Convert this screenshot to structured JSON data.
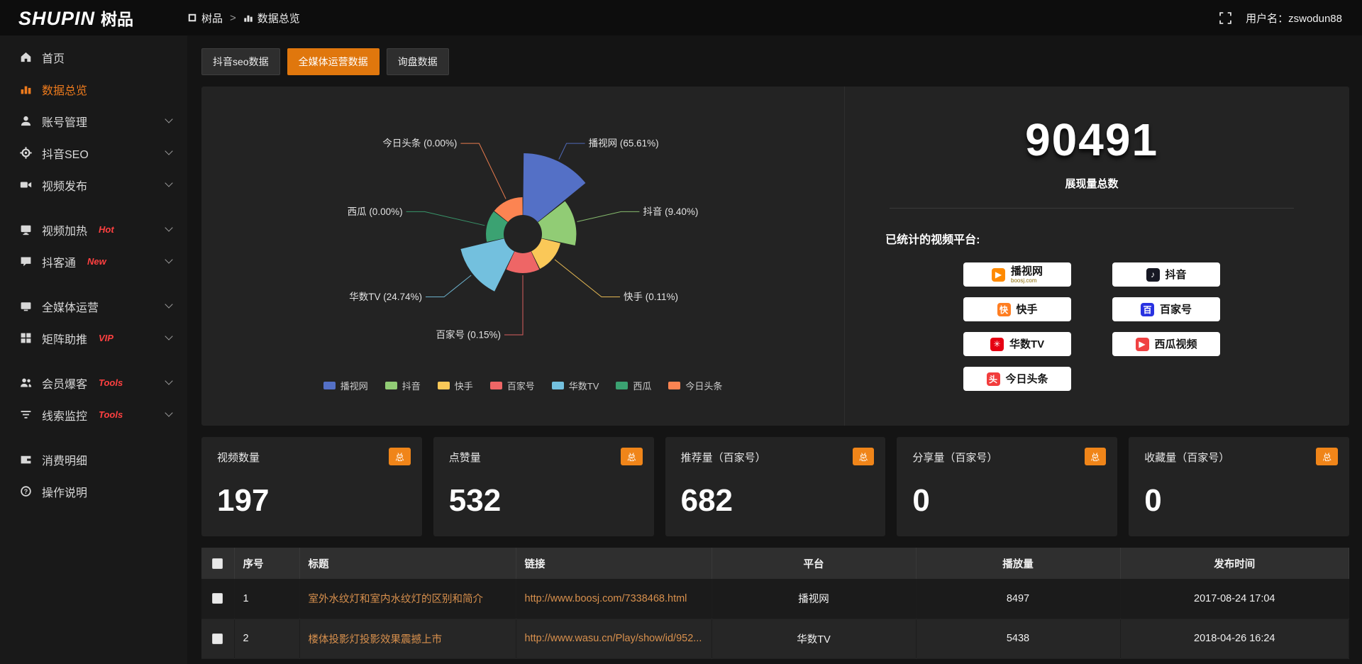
{
  "app": {
    "logo_en": "SHUPIN",
    "logo_cn": "树品",
    "breadcrumb": [
      {
        "icon": "app-cube-icon",
        "icon_key": "cube",
        "label": "树品"
      },
      {
        "icon": "data-overview-icon",
        "icon_key": "chart",
        "label": "数据总览"
      }
    ],
    "breadcrumb_sep": ">",
    "username": "用户名：zswodun88"
  },
  "sidebar": {
    "items": [
      {
        "id": "home",
        "label": "首页",
        "icon": "home-icon",
        "icon_key": "home"
      },
      {
        "id": "data-overview",
        "label": "数据总览",
        "icon": "bar-chart-icon",
        "icon_key": "chart",
        "active": true
      },
      {
        "id": "account",
        "label": "账号管理",
        "icon": "user-icon",
        "icon_key": "user",
        "expandable": true
      },
      {
        "id": "douyin-seo",
        "label": "抖音SEO",
        "icon": "gear-icon",
        "icon_key": "gear",
        "expandable": true
      },
      {
        "id": "video-publish",
        "label": "视频发布",
        "icon": "video-icon",
        "icon_key": "video",
        "expandable": true
      },
      {
        "id": "video-heat",
        "label": "视频加热",
        "icon": "monitor-icon",
        "icon_key": "monitor",
        "tag": "Hot",
        "expandable": true,
        "gap_before": true
      },
      {
        "id": "douketong",
        "label": "抖客通",
        "icon": "chat-icon",
        "icon_key": "chat",
        "tag": "New",
        "expandable": true
      },
      {
        "id": "media-ops",
        "label": "全媒体运营",
        "icon": "screen-icon",
        "icon_key": "screen",
        "expandable": true,
        "gap_before": true
      },
      {
        "id": "matrix-boost",
        "label": "矩阵助推",
        "icon": "grid-icon",
        "icon_key": "grid",
        "tag": "VIP",
        "expandable": true
      },
      {
        "id": "member-burst",
        "label": "会员爆客",
        "icon": "users-icon",
        "icon_key": "users",
        "tag": "Tools",
        "expandable": true,
        "gap_before": true
      },
      {
        "id": "leads-monitor",
        "label": "线索监控",
        "icon": "filter-icon",
        "icon_key": "filter",
        "tag": "Tools",
        "expandable": true
      },
      {
        "id": "spend-detail",
        "label": "消费明细",
        "icon": "wallet-icon",
        "icon_key": "wallet",
        "gap_before": true
      },
      {
        "id": "help",
        "label": "操作说明",
        "icon": "question-icon",
        "icon_key": "help"
      }
    ]
  },
  "tabs": [
    {
      "label": "抖音seo数据"
    },
    {
      "label": "全媒体运营数据",
      "active": true
    },
    {
      "label": "询盘数据"
    }
  ],
  "chart_data": {
    "type": "pie",
    "style": "nightingale-rose",
    "legend_position": "bottom",
    "series": [
      {
        "name": "播视网",
        "value": 65.61,
        "label": "播视网 (65.61%)",
        "color": "#5470c6"
      },
      {
        "name": "抖音",
        "value": 9.4,
        "label": "抖音 (9.40%)",
        "color": "#91cc75"
      },
      {
        "name": "快手",
        "value": 0.11,
        "label": "快手 (0.11%)",
        "color": "#fac858"
      },
      {
        "name": "百家号",
        "value": 0.15,
        "label": "百家号 (0.15%)",
        "color": "#ee6666"
      },
      {
        "name": "华数TV",
        "value": 24.74,
        "label": "华数TV (24.74%)",
        "color": "#73c0de"
      },
      {
        "name": "西瓜",
        "value": 0.0,
        "label": "西瓜 (0.00%)",
        "color": "#3ba272"
      },
      {
        "name": "今日头条",
        "value": 0.0,
        "label": "今日头条 (0.00%)",
        "color": "#fc8452"
      }
    ]
  },
  "summary": {
    "total_value": "90491",
    "total_label": "展现量总数",
    "platforms_label": "已统计的视频平台:",
    "platform_columns": [
      [
        {
          "name": "播视网",
          "sub": "boosj.com",
          "icon": "boshiwang-icon",
          "glyph": "▶",
          "color": "#ff8a00"
        },
        {
          "name": "快手",
          "icon": "kuaishou-icon",
          "glyph": "快",
          "color": "#ff7e22"
        },
        {
          "name": "华数TV",
          "icon": "wasu-icon",
          "glyph": "✳",
          "color": "#e60012"
        },
        {
          "name": "今日头条",
          "icon": "toutiao-icon",
          "glyph": "头",
          "color": "#f23d3d"
        }
      ],
      [
        {
          "name": "抖音",
          "icon": "douyin-icon",
          "glyph": "♪",
          "color": "#161823"
        },
        {
          "name": "百家号",
          "icon": "baijiahao-icon",
          "glyph": "百",
          "color": "#2932e1"
        },
        {
          "name": "西瓜视频",
          "icon": "xigua-icon",
          "glyph": "▶",
          "color": "#f04142"
        }
      ]
    ]
  },
  "stat_cards": [
    {
      "label": "视频数量",
      "value": "197",
      "badge": "总"
    },
    {
      "label": "点赞量",
      "value": "532",
      "badge": "总"
    },
    {
      "label": "推荐量（百家号）",
      "value": "682",
      "badge": "总"
    },
    {
      "label": "分享量（百家号）",
      "value": "0",
      "badge": "总"
    },
    {
      "label": "收藏量（百家号）",
      "value": "0",
      "badge": "总"
    }
  ],
  "table": {
    "headers": [
      "序号",
      "标题",
      "链接",
      "平台",
      "播放量",
      "发布时间"
    ],
    "rows": [
      {
        "index": "1",
        "title": "室外水纹灯和室内水纹灯的区别和简介",
        "link": "http://www.boosj.com/7338468.html",
        "platform": "播视网",
        "plays": "8497",
        "date": "2017-08-24 17:04"
      },
      {
        "index": "2",
        "title": "楼体投影灯投影效果震撼上市",
        "link": "http://www.wasu.cn/Play/show/id/952...",
        "platform": "华数TV",
        "plays": "5438",
        "date": "2018-04-26 16:24"
      }
    ]
  },
  "colors": {
    "accent_orange": "#e0770d",
    "badge_orange": "#f08519",
    "link_orange": "#d8904d",
    "tag_red": "#ff4040",
    "panel_bg": "#232323",
    "topbar_bg": "#0d0d0d",
    "sidebar_bg": "#191919"
  }
}
